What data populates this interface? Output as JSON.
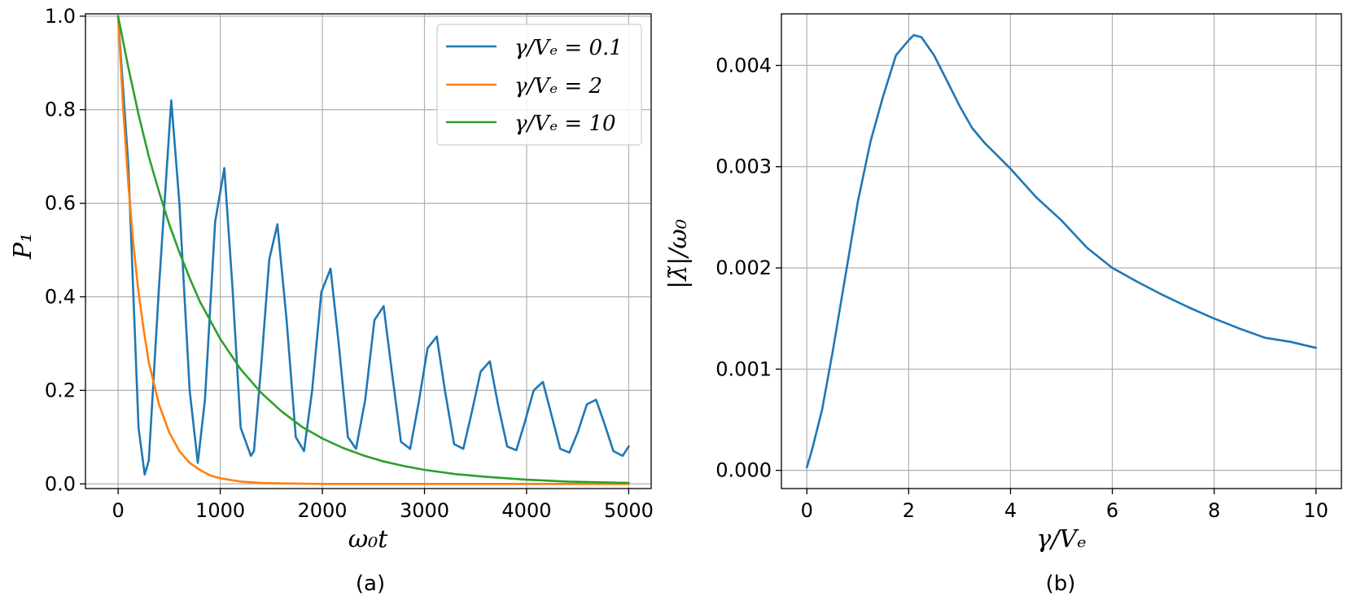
{
  "chart_data": [
    {
      "type": "line",
      "caption": "(a)",
      "xlabel": "ω₀t",
      "ylabel": "P₁",
      "xlim": [
        -320,
        5220
      ],
      "ylim": [
        -0.01,
        1.005
      ],
      "xticks": [
        0,
        1000,
        2000,
        3000,
        4000,
        5000
      ],
      "yticks": [
        0.0,
        0.2,
        0.4,
        0.6,
        0.8,
        1.0
      ],
      "grid": true,
      "legend": "top-right",
      "series": [
        {
          "name": "γ/Vₑ = 0.1",
          "color": "#1f77b4",
          "x": [
            0,
            100,
            200,
            260,
            300,
            400,
            520,
            600,
            700,
            780,
            850,
            950,
            1040,
            1120,
            1200,
            1300,
            1330,
            1400,
            1480,
            1560,
            1650,
            1740,
            1820,
            1900,
            1990,
            2080,
            2160,
            2250,
            2330,
            2420,
            2510,
            2600,
            2680,
            2770,
            2860,
            2940,
            3030,
            3120,
            3200,
            3290,
            3380,
            3460,
            3550,
            3640,
            3720,
            3810,
            3900,
            3980,
            4070,
            4160,
            4240,
            4330,
            4420,
            4500,
            4590,
            4680,
            4760,
            4850,
            4940,
            5000
          ],
          "y": [
            1.0,
            0.68,
            0.12,
            0.02,
            0.05,
            0.42,
            0.82,
            0.6,
            0.2,
            0.045,
            0.18,
            0.56,
            0.675,
            0.42,
            0.12,
            0.06,
            0.07,
            0.25,
            0.48,
            0.555,
            0.35,
            0.1,
            0.07,
            0.2,
            0.41,
            0.46,
            0.3,
            0.1,
            0.075,
            0.18,
            0.35,
            0.38,
            0.24,
            0.09,
            0.075,
            0.17,
            0.29,
            0.315,
            0.2,
            0.085,
            0.075,
            0.15,
            0.24,
            0.262,
            0.17,
            0.08,
            0.072,
            0.13,
            0.2,
            0.218,
            0.15,
            0.075,
            0.067,
            0.11,
            0.17,
            0.18,
            0.13,
            0.07,
            0.06,
            0.08
          ]
        },
        {
          "name": "γ/Vₑ = 2",
          "color": "#ff7f0e",
          "x": [
            0,
            50,
            100,
            150,
            200,
            250,
            300,
            400,
            500,
            600,
            700,
            800,
            900,
            1000,
            1200,
            1400,
            1600,
            2000,
            2500,
            3000,
            4000,
            5000
          ],
          "y": [
            1.0,
            0.8,
            0.64,
            0.51,
            0.41,
            0.33,
            0.26,
            0.17,
            0.11,
            0.07,
            0.045,
            0.03,
            0.018,
            0.012,
            0.005,
            0.002,
            0.001,
            0.0,
            0.0,
            0.0,
            0.0,
            0.0
          ]
        },
        {
          "name": "γ/Vₑ = 10",
          "color": "#2ca02c",
          "x": [
            0,
            100,
            200,
            300,
            400,
            500,
            600,
            700,
            800,
            900,
            1000,
            1200,
            1400,
            1600,
            1800,
            2000,
            2200,
            2400,
            2600,
            2800,
            3000,
            3300,
            3600,
            4000,
            4400,
            4800,
            5000
          ],
          "y": [
            1.0,
            0.89,
            0.79,
            0.7,
            0.625,
            0.555,
            0.495,
            0.44,
            0.39,
            0.35,
            0.31,
            0.245,
            0.195,
            0.155,
            0.122,
            0.097,
            0.077,
            0.061,
            0.048,
            0.038,
            0.03,
            0.021,
            0.015,
            0.009,
            0.005,
            0.003,
            0.002
          ]
        }
      ]
    },
    {
      "type": "line",
      "caption": "(b)",
      "xlabel": "γ/Vₑ",
      "ylabel": "|λ̃|/ω₀",
      "xlim": [
        -0.5,
        10.5
      ],
      "ylim": [
        -0.00018,
        0.00451
      ],
      "xticks": [
        0,
        2,
        4,
        6,
        8,
        10
      ],
      "yticks": [
        0.0,
        0.001,
        0.002,
        0.003,
        0.004
      ],
      "ytick_labels": [
        "0.000",
        "0.001",
        "0.002",
        "0.003",
        "0.004"
      ],
      "grid": true,
      "series": [
        {
          "color": "#1f77b4",
          "x": [
            0.0,
            0.1,
            0.3,
            0.5,
            0.75,
            1.0,
            1.25,
            1.5,
            1.75,
            2.0,
            2.1,
            2.25,
            2.5,
            2.75,
            3.0,
            3.25,
            3.5,
            4.0,
            4.5,
            5.0,
            5.5,
            6.0,
            6.5,
            7.0,
            7.5,
            8.0,
            8.5,
            9.0,
            9.5,
            10.0
          ],
          "y": [
            3e-05,
            0.0002,
            0.0006,
            0.00115,
            0.0019,
            0.00265,
            0.00325,
            0.0037,
            0.0041,
            0.00425,
            0.0043,
            0.00428,
            0.0041,
            0.00385,
            0.0036,
            0.00338,
            0.00323,
            0.00298,
            0.0027,
            0.00247,
            0.0022,
            0.002,
            0.00186,
            0.00173,
            0.00161,
            0.0015,
            0.0014,
            0.00131,
            0.00127,
            0.00121
          ]
        }
      ]
    }
  ]
}
